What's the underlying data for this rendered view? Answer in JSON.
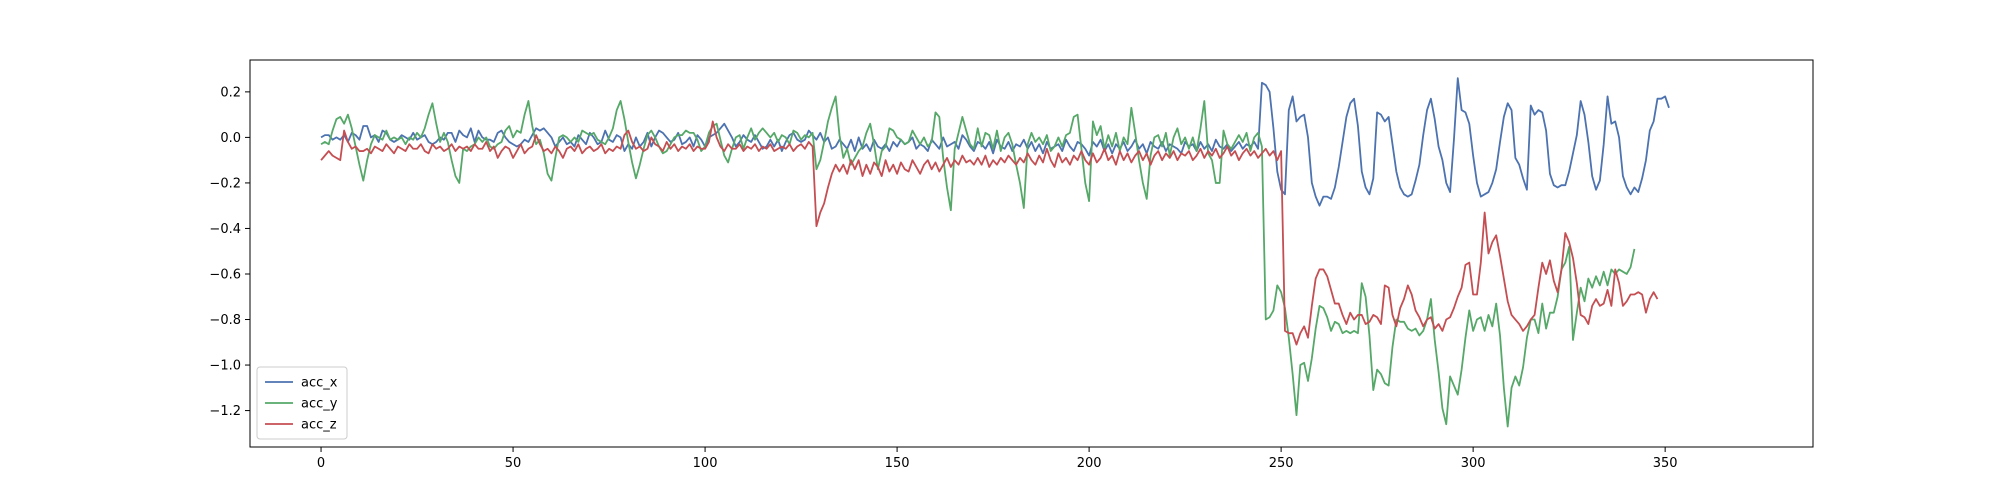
{
  "chart_data": {
    "type": "line",
    "title": "",
    "xlabel": "",
    "ylabel": "",
    "xlim": [
      -18.5,
      388.5
    ],
    "ylim": [
      -1.36,
      0.34
    ],
    "xticks": [
      0,
      50,
      100,
      150,
      200,
      250,
      300,
      350
    ],
    "yticks": [
      0.2,
      0.0,
      -0.2,
      -0.4,
      -0.6,
      -0.8,
      -1.0,
      -1.2
    ],
    "xtick_labels": [
      "0",
      "50",
      "100",
      "150",
      "200",
      "250",
      "300",
      "350"
    ],
    "ytick_labels": [
      "0.2",
      "0.0",
      "−0.2",
      "−0.4",
      "−0.6",
      "−0.8",
      "−1.0",
      "−1.2"
    ],
    "grid": false,
    "legend_position": "lower-left",
    "x_start": 0,
    "x_step": 1,
    "series": [
      {
        "name": "acc_x",
        "color": "#4c72b0",
        "values": [
          0.0,
          0.01,
          0.01,
          -0.01,
          0.0,
          -0.01,
          0.01,
          -0.02,
          0.02,
          0.01,
          -0.01,
          0.05,
          0.05,
          0.0,
          0.01,
          -0.02,
          0.03,
          0.02,
          -0.01,
          -0.02,
          -0.01,
          0.01,
          0.0,
          -0.01,
          0.02,
          -0.01,
          0.0,
          0.01,
          -0.02,
          -0.03,
          -0.02,
          0.0,
          -0.01,
          0.02,
          0.02,
          -0.02,
          0.03,
          0.01,
          0.0,
          0.04,
          -0.02,
          0.03,
          0.0,
          -0.01,
          -0.01,
          -0.02,
          0.02,
          0.03,
          0.0,
          -0.02,
          -0.03,
          -0.04,
          -0.03,
          -0.01,
          -0.02,
          0.01,
          0.04,
          0.03,
          0.04,
          0.02,
          0.0,
          -0.04,
          -0.02,
          0.0,
          -0.03,
          -0.02,
          -0.04,
          0.01,
          -0.01,
          -0.03,
          0.02,
          0.0,
          -0.03,
          -0.02,
          0.03,
          -0.01,
          -0.02,
          0.01,
          0.0,
          -0.06,
          -0.03,
          -0.05,
          0.0,
          -0.04,
          -0.02,
          0.02,
          -0.04,
          0.0,
          0.03,
          0.02,
          0.0,
          -0.02,
          -0.01,
          0.02,
          -0.03,
          -0.02,
          0.0,
          -0.04,
          0.01,
          -0.01,
          -0.04,
          0.0,
          0.01,
          0.02,
          0.04,
          0.06,
          0.03,
          0.0,
          -0.04,
          -0.02,
          0.01,
          -0.01,
          -0.02,
          0.01,
          -0.02,
          -0.05,
          -0.04,
          -0.01,
          -0.04,
          -0.01,
          -0.06,
          -0.02,
          0.01,
          0.02,
          -0.01,
          -0.02,
          -0.01,
          0.03,
          0.01,
          -0.01,
          0.02,
          -0.02,
          0.0,
          -0.05,
          -0.04,
          -0.01,
          -0.03,
          -0.05,
          -0.01,
          -0.06,
          0.0,
          -0.05,
          -0.03,
          -0.06,
          -0.01,
          -0.04,
          -0.05,
          -0.03,
          -0.06,
          -0.02,
          -0.04,
          -0.01,
          -0.03,
          -0.02,
          0.0,
          -0.05,
          -0.03,
          -0.04,
          -0.06,
          -0.01,
          -0.03,
          -0.05,
          0.0,
          -0.04,
          -0.03,
          -0.02,
          -0.05,
          0.01,
          -0.01,
          -0.04,
          -0.06,
          -0.02,
          -0.03,
          -0.05,
          -0.02,
          -0.07,
          -0.01,
          -0.04,
          -0.05,
          -0.02,
          -0.06,
          -0.03,
          -0.04,
          -0.01,
          -0.05,
          -0.02,
          -0.06,
          -0.03,
          -0.07,
          -0.02,
          -0.05,
          -0.04,
          -0.03,
          -0.06,
          -0.01,
          -0.04,
          -0.06,
          -0.02,
          -0.03,
          -0.05,
          -0.08,
          -0.02,
          -0.04,
          -0.01,
          -0.06,
          -0.03,
          -0.07,
          -0.03,
          -0.05,
          -0.02,
          -0.06,
          -0.04,
          -0.01,
          -0.05,
          -0.03,
          -0.07,
          -0.02,
          -0.04,
          -0.05,
          -0.02,
          -0.06,
          -0.03,
          -0.04,
          -0.05,
          -0.07,
          -0.02,
          -0.04,
          -0.03,
          -0.06,
          -0.02,
          -0.05,
          -0.03,
          -0.06,
          -0.01,
          -0.04,
          -0.05,
          -0.03,
          -0.06,
          -0.04,
          -0.02,
          -0.05,
          -0.03,
          -0.04,
          -0.02,
          -0.05,
          0.24,
          0.23,
          0.2,
          0.04,
          -0.15,
          -0.23,
          -0.25,
          0.12,
          0.18,
          0.07,
          0.09,
          0.1,
          0.0,
          -0.2,
          -0.26,
          -0.3,
          -0.26,
          -0.26,
          -0.27,
          -0.22,
          -0.13,
          -0.02,
          0.09,
          0.15,
          0.17,
          0.05,
          -0.15,
          -0.22,
          -0.25,
          -0.18,
          0.11,
          0.1,
          0.07,
          0.09,
          -0.03,
          -0.15,
          -0.22,
          -0.25,
          -0.26,
          -0.25,
          -0.19,
          -0.12,
          0.01,
          0.12,
          0.17,
          0.08,
          -0.04,
          -0.1,
          -0.2,
          -0.24,
          -0.01,
          0.26,
          0.12,
          0.11,
          0.06,
          -0.08,
          -0.2,
          -0.26,
          -0.25,
          -0.24,
          -0.2,
          -0.14,
          -0.02,
          0.09,
          0.15,
          0.12,
          -0.09,
          -0.12,
          -0.18,
          -0.23,
          0.14,
          0.1,
          0.12,
          0.11,
          0.03,
          -0.16,
          -0.21,
          -0.22,
          -0.21,
          -0.21,
          -0.15,
          -0.07,
          0.01,
          0.16,
          0.1,
          -0.02,
          -0.17,
          -0.23,
          -0.19,
          -0.03,
          0.18,
          0.06,
          0.07,
          0.0,
          -0.17,
          -0.22,
          -0.25,
          -0.22,
          -0.24,
          -0.18,
          -0.1,
          0.03,
          0.07,
          0.17,
          0.17,
          0.18,
          0.13
        ]
      },
      {
        "name": "acc_y",
        "color": "#55a868",
        "values": [
          -0.03,
          -0.02,
          -0.03,
          0.03,
          0.08,
          0.09,
          0.06,
          0.1,
          0.04,
          -0.04,
          -0.12,
          -0.19,
          -0.1,
          -0.03,
          0.01,
          0.0,
          -0.01,
          0.03,
          -0.01,
          0.0,
          -0.01,
          0.0,
          -0.03,
          0.0,
          -0.01,
          0.02,
          0.0,
          0.04,
          0.1,
          0.15,
          0.06,
          -0.02,
          0.02,
          -0.02,
          -0.1,
          -0.17,
          -0.2,
          -0.05,
          -0.06,
          -0.04,
          -0.03,
          0.0,
          -0.02,
          0.0,
          -0.04,
          -0.05,
          -0.03,
          -0.02,
          0.03,
          0.05,
          0.0,
          0.03,
          0.02,
          0.1,
          0.16,
          0.05,
          -0.03,
          -0.01,
          -0.07,
          -0.16,
          -0.19,
          -0.09,
          0.0,
          0.01,
          0.0,
          -0.02,
          0.0,
          -0.02,
          0.03,
          0.02,
          0.01,
          0.02,
          -0.01,
          -0.02,
          -0.03,
          0.0,
          0.04,
          0.12,
          0.16,
          0.08,
          -0.02,
          -0.11,
          -0.18,
          -0.12,
          -0.05,
          0.01,
          0.03,
          0.0,
          -0.04,
          -0.07,
          -0.06,
          -0.03,
          0.0,
          0.01,
          0.01,
          0.03,
          0.02,
          0.02,
          -0.01,
          -0.06,
          -0.04,
          0.02,
          0.05,
          0.06,
          -0.01,
          -0.08,
          -0.11,
          -0.05,
          0.0,
          0.01,
          -0.05,
          0.0,
          0.04,
          -0.01,
          0.02,
          0.04,
          0.02,
          0.0,
          0.02,
          -0.02,
          0.01,
          0.0,
          -0.03,
          0.03,
          0.02,
          -0.01,
          0.01,
          0.0,
          0.02,
          -0.14,
          -0.1,
          -0.02,
          0.07,
          0.13,
          0.18,
          0.01,
          -0.09,
          -0.05,
          -0.12,
          -0.09,
          -0.06,
          -0.04,
          0.02,
          0.06,
          -0.03,
          -0.14,
          -0.06,
          -0.04,
          0.04,
          0.03,
          0.0,
          -0.01,
          -0.03,
          -0.02,
          0.03,
          0.0,
          -0.03,
          0.0,
          -0.04,
          -0.02,
          0.11,
          0.09,
          -0.09,
          -0.22,
          -0.32,
          -0.05,
          0.02,
          0.09,
          0.03,
          -0.03,
          -0.05,
          0.04,
          -0.04,
          0.02,
          0.01,
          -0.05,
          0.03,
          -0.06,
          0.0,
          0.02,
          -0.03,
          -0.12,
          -0.2,
          -0.31,
          -0.03,
          0.02,
          -0.02,
          0.0,
          -0.03,
          0.01,
          -0.06,
          -0.04,
          0.0,
          -0.04,
          0.01,
          0.02,
          0.09,
          0.1,
          -0.05,
          -0.2,
          -0.28,
          0.07,
          0.01,
          0.05,
          -0.05,
          0.01,
          -0.04,
          0.02,
          -0.06,
          0.0,
          -0.03,
          0.13,
          0.02,
          -0.1,
          -0.2,
          -0.27,
          -0.08,
          0.0,
          0.01,
          -0.04,
          0.02,
          -0.08,
          0.0,
          0.04,
          -0.03,
          0.0,
          -0.05,
          0.0,
          -0.06,
          0.04,
          0.16,
          -0.07,
          -0.1,
          -0.2,
          -0.2,
          0.03,
          -0.03,
          -0.05,
          -0.02,
          0.01,
          -0.02,
          0.02,
          -0.06,
          0.0,
          0.02,
          -0.04,
          -0.8,
          -0.79,
          -0.76,
          -0.65,
          -0.68,
          -0.75,
          -0.88,
          -1.04,
          -1.22,
          -1.0,
          -0.99,
          -1.07,
          -0.97,
          -0.84,
          -0.74,
          -0.75,
          -0.79,
          -0.85,
          -0.81,
          -0.82,
          -0.86,
          -0.85,
          -0.86,
          -0.85,
          -0.86,
          -0.64,
          -0.7,
          -0.87,
          -1.11,
          -1.02,
          -1.04,
          -1.08,
          -1.09,
          -0.92,
          -0.8,
          -0.81,
          -0.81,
          -0.84,
          -0.85,
          -0.84,
          -0.87,
          -0.85,
          -0.8,
          -0.71,
          -0.89,
          -1.03,
          -1.19,
          -1.26,
          -1.05,
          -1.09,
          -1.13,
          -1.02,
          -0.88,
          -0.76,
          -0.85,
          -0.8,
          -0.79,
          -0.85,
          -0.78,
          -0.83,
          -0.73,
          -0.87,
          -1.1,
          -1.27,
          -1.1,
          -1.05,
          -1.09,
          -1.01,
          -0.88,
          -0.8,
          -0.8,
          -0.86,
          -0.73,
          -0.84,
          -0.77,
          -0.77,
          -0.7,
          -0.58,
          -0.55,
          -0.48,
          -0.89,
          -0.77,
          -0.66,
          -0.72,
          -0.62,
          -0.66,
          -0.61,
          -0.65,
          -0.59,
          -0.65,
          -0.58,
          -0.6,
          -0.58,
          -0.59,
          -0.6,
          -0.57,
          -0.49
        ]
      },
      {
        "name": "acc_z",
        "color": "#c44e52",
        "values": [
          -0.1,
          -0.08,
          -0.06,
          -0.08,
          -0.09,
          -0.1,
          0.03,
          -0.02,
          -0.05,
          -0.04,
          -0.06,
          -0.06,
          -0.05,
          -0.07,
          -0.04,
          -0.05,
          -0.06,
          -0.03,
          -0.05,
          -0.07,
          -0.04,
          -0.05,
          -0.06,
          -0.03,
          -0.05,
          -0.05,
          -0.03,
          -0.06,
          -0.07,
          -0.03,
          -0.05,
          -0.04,
          -0.06,
          -0.05,
          -0.03,
          -0.06,
          -0.04,
          -0.05,
          -0.04,
          -0.06,
          -0.03,
          -0.05,
          -0.05,
          -0.02,
          -0.06,
          -0.04,
          -0.09,
          -0.06,
          -0.04,
          -0.05,
          -0.09,
          -0.06,
          -0.03,
          -0.07,
          -0.05,
          -0.04,
          0.01,
          -0.03,
          -0.06,
          -0.05,
          -0.07,
          -0.04,
          -0.06,
          -0.09,
          -0.05,
          -0.04,
          -0.06,
          -0.03,
          -0.07,
          -0.05,
          -0.04,
          -0.06,
          -0.05,
          -0.03,
          -0.07,
          -0.05,
          -0.06,
          -0.04,
          -0.05,
          0.01,
          0.03,
          -0.02,
          -0.05,
          -0.04,
          -0.06,
          -0.05,
          0.0,
          -0.03,
          -0.04,
          -0.06,
          -0.02,
          -0.05,
          -0.03,
          -0.06,
          -0.04,
          -0.05,
          -0.03,
          -0.06,
          -0.04,
          -0.05,
          -0.05,
          -0.02,
          0.07,
          0.0,
          -0.04,
          -0.06,
          -0.03,
          -0.05,
          -0.05,
          -0.03,
          -0.06,
          -0.04,
          -0.05,
          -0.03,
          -0.06,
          -0.04,
          -0.05,
          -0.03,
          -0.06,
          -0.05,
          -0.04,
          -0.05,
          -0.03,
          -0.06,
          -0.04,
          -0.03,
          -0.05,
          -0.02,
          -0.04,
          -0.39,
          -0.33,
          -0.29,
          -0.22,
          -0.16,
          -0.12,
          -0.15,
          -0.12,
          -0.16,
          -0.1,
          -0.14,
          -0.1,
          -0.17,
          -0.12,
          -0.16,
          -0.11,
          -0.13,
          -0.17,
          -0.1,
          -0.15,
          -0.12,
          -0.16,
          -0.11,
          -0.14,
          -0.15,
          -0.1,
          -0.13,
          -0.16,
          -0.12,
          -0.1,
          -0.14,
          -0.11,
          -0.15,
          -0.12,
          -0.09,
          -0.13,
          -0.1,
          -0.12,
          -0.08,
          -0.11,
          -0.1,
          -0.12,
          -0.09,
          -0.12,
          -0.08,
          -0.13,
          -0.1,
          -0.12,
          -0.09,
          -0.11,
          -0.08,
          -0.1,
          -0.12,
          -0.09,
          -0.11,
          -0.07,
          -0.1,
          -0.12,
          -0.08,
          -0.11,
          -0.05,
          -0.1,
          -0.13,
          -0.07,
          -0.11,
          -0.09,
          -0.12,
          -0.08,
          -0.1,
          -0.06,
          -0.1,
          -0.12,
          -0.07,
          -0.11,
          -0.09,
          -0.05,
          -0.1,
          -0.08,
          -0.12,
          -0.06,
          -0.1,
          -0.07,
          -0.11,
          -0.08,
          -0.06,
          -0.1,
          -0.07,
          -0.12,
          -0.08,
          -0.06,
          -0.1,
          -0.07,
          -0.09,
          -0.06,
          -0.1,
          -0.07,
          -0.08,
          -0.06,
          -0.1,
          -0.08,
          -0.05,
          -0.09,
          -0.06,
          -0.08,
          -0.05,
          -0.09,
          -0.07,
          -0.04,
          -0.08,
          -0.06,
          -0.1,
          -0.07,
          -0.05,
          -0.08,
          -0.06,
          -0.09,
          -0.07,
          -0.05,
          -0.08,
          -0.06,
          -0.1,
          -0.06,
          -0.85,
          -0.86,
          -0.86,
          -0.91,
          -0.86,
          -0.83,
          -0.88,
          -0.74,
          -0.62,
          -0.58,
          -0.58,
          -0.61,
          -0.67,
          -0.73,
          -0.73,
          -0.78,
          -0.82,
          -0.77,
          -0.8,
          -0.78,
          -0.78,
          -0.82,
          -0.81,
          -0.78,
          -0.79,
          -0.82,
          -0.65,
          -0.66,
          -0.78,
          -0.83,
          -0.75,
          -0.71,
          -0.65,
          -0.69,
          -0.76,
          -0.79,
          -0.83,
          -0.8,
          -0.79,
          -0.84,
          -0.82,
          -0.85,
          -0.8,
          -0.79,
          -0.75,
          -0.7,
          -0.66,
          -0.56,
          -0.55,
          -0.69,
          -0.69,
          -0.55,
          -0.33,
          -0.51,
          -0.46,
          -0.43,
          -0.52,
          -0.62,
          -0.72,
          -0.78,
          -0.8,
          -0.82,
          -0.85,
          -0.83,
          -0.8,
          -0.78,
          -0.66,
          -0.55,
          -0.6,
          -0.54,
          -0.63,
          -0.68,
          -0.58,
          -0.42,
          -0.46,
          -0.53,
          -0.64,
          -0.78,
          -0.79,
          -0.82,
          -0.74,
          -0.71,
          -0.74,
          -0.73,
          -0.67,
          -0.74,
          -0.58,
          -0.64,
          -0.74,
          -0.72,
          -0.69,
          -0.69,
          -0.68,
          -0.69,
          -0.77,
          -0.71,
          -0.68,
          -0.71
        ]
      }
    ]
  }
}
